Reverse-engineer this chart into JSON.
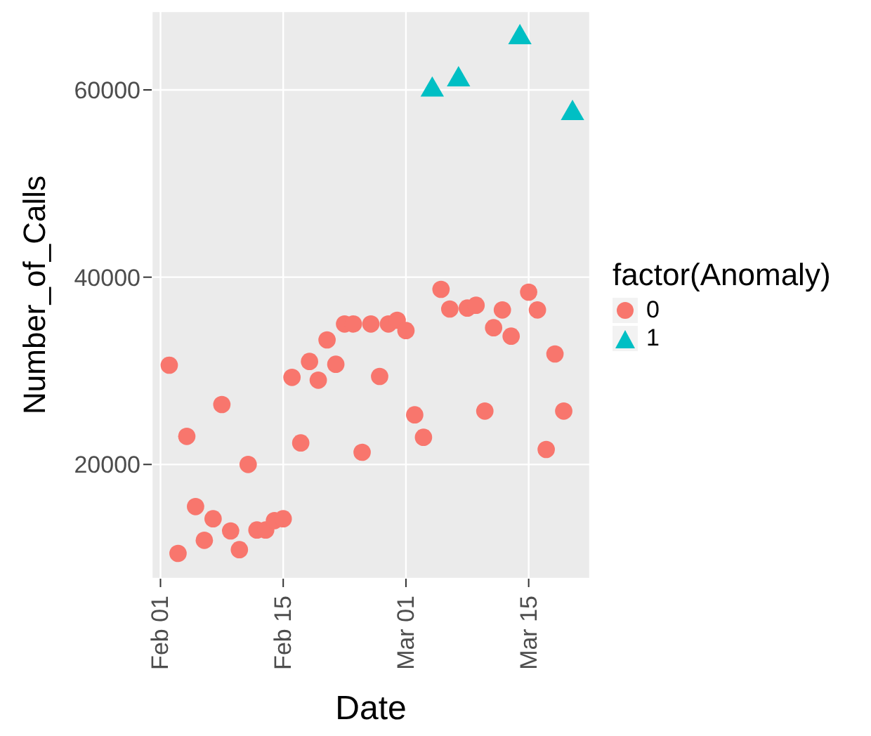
{
  "chart_data": {
    "type": "scatter",
    "xlabel": "Date",
    "ylabel": "Number_of_Calls",
    "legend_title": "factor(Anomaly)",
    "legend": "right",
    "grid": true,
    "xlim": [
      "--01-31",
      "--03-22"
    ],
    "xticks": [
      {
        "value": "--02-01",
        "label": "Feb 01"
      },
      {
        "value": "--02-15",
        "label": "Feb 15"
      },
      {
        "value": "--03-01",
        "label": "Mar 01"
      },
      {
        "value": "--03-15",
        "label": "Mar 15"
      }
    ],
    "ylim": [
      7800,
      68400
    ],
    "yticks": [
      20000,
      40000,
      60000
    ],
    "series": [
      {
        "name": "0",
        "color": "#f8766d",
        "marker": "circle",
        "x": [
          "--02-02",
          "--02-03",
          "--02-04",
          "--02-05",
          "--02-06",
          "--02-07",
          "--02-08",
          "--02-09",
          "--02-10",
          "--02-11",
          "--02-12",
          "--02-13",
          "--02-14",
          "--02-15",
          "--02-16",
          "--02-17",
          "--02-18",
          "--02-19",
          "--02-20",
          "--02-21",
          "--02-22",
          "--02-23",
          "--02-24",
          "--02-25",
          "--02-26",
          "--02-27",
          "--02-28",
          "--03-01",
          "--03-02",
          "--03-03",
          "--03-05",
          "--03-06",
          "--03-08",
          "--03-09",
          "--03-10",
          "--03-11",
          "--03-12",
          "--03-13",
          "--03-15",
          "--03-16",
          "--03-17",
          "--03-18",
          "--03-19"
        ],
        "values": [
          30600,
          10500,
          23000,
          15500,
          11900,
          14200,
          26400,
          12900,
          10900,
          20000,
          13000,
          13000,
          14000,
          14200,
          29300,
          22300,
          31000,
          29000,
          33300,
          30700,
          35000,
          35000,
          21300,
          35000,
          29400,
          35000,
          35400,
          34300,
          25300,
          22900,
          38700,
          36600,
          36700,
          37000,
          25700,
          34600,
          36500,
          33700,
          38400,
          36500,
          21600,
          31800,
          25700
        ]
      },
      {
        "name": "1",
        "color": "#00bfc4",
        "marker": "triangle",
        "x": [
          "--03-04",
          "--03-07",
          "--03-14",
          "--03-20"
        ],
        "values": [
          60000,
          61100,
          65600,
          57500
        ]
      }
    ]
  }
}
